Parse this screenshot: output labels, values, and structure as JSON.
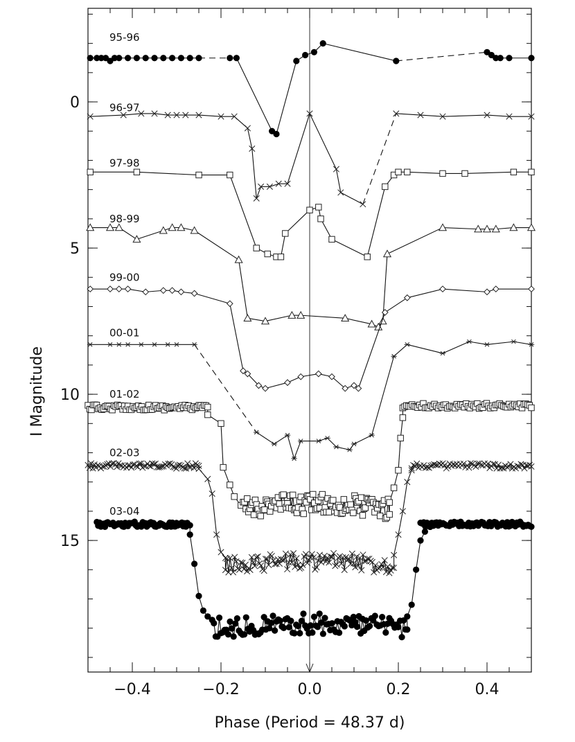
{
  "chart_data": {
    "type": "scatter",
    "title": "",
    "xlabel": "Phase (Period = 48.37 d)",
    "ylabel": "I Magnitude",
    "xlim": [
      -0.5,
      0.5
    ],
    "ylim": [
      19.5,
      -3.2
    ],
    "y_inverted": true,
    "grid": false,
    "legend": "none",
    "xticks": [
      -0.4,
      -0.2,
      0.0,
      0.2,
      0.4
    ],
    "xtick_labels": [
      "−0.4",
      "−0.2",
      "0.0",
      "0.2",
      "0.4"
    ],
    "yticks": [
      0,
      5,
      10,
      15
    ],
    "ytick_labels": [
      "0",
      "5",
      "10",
      "15"
    ],
    "zero_phase_line": 0.0,
    "series": [
      {
        "label": "95-96",
        "marker": "filled-circle",
        "label_y": -2.2,
        "points": [
          [
            -0.495,
            -1.5
          ],
          [
            -0.48,
            -1.5
          ],
          [
            -0.47,
            -1.5
          ],
          [
            -0.46,
            -1.5
          ],
          [
            -0.45,
            -1.4
          ],
          [
            -0.44,
            -1.5
          ],
          [
            -0.43,
            -1.5
          ],
          [
            -0.41,
            -1.5
          ],
          [
            -0.39,
            -1.5
          ],
          [
            -0.37,
            -1.5
          ],
          [
            -0.35,
            -1.5
          ],
          [
            -0.33,
            -1.5
          ],
          [
            -0.31,
            -1.5
          ],
          [
            -0.29,
            -1.5
          ],
          [
            -0.27,
            -1.5
          ],
          [
            -0.25,
            -1.5
          ],
          [
            -0.18,
            -1.5
          ],
          [
            -0.165,
            -1.5
          ],
          [
            -0.085,
            1.0
          ],
          [
            -0.075,
            1.1
          ],
          [
            -0.03,
            -1.4
          ],
          [
            -0.01,
            -1.6
          ],
          [
            0.01,
            -1.7
          ],
          [
            0.03,
            -2.0
          ],
          [
            0.195,
            -1.4
          ],
          [
            0.4,
            -1.7
          ],
          [
            0.41,
            -1.6
          ],
          [
            0.42,
            -1.5
          ],
          [
            0.43,
            -1.5
          ],
          [
            0.45,
            -1.5
          ],
          [
            0.5,
            -1.5
          ]
        ],
        "dashed_gaps": [
          [
            15,
            16
          ],
          [
            16,
            18
          ],
          [
            24,
            25
          ]
        ]
      },
      {
        "label": "96-97",
        "marker": "x-cross",
        "label_y": 0.2,
        "points": [
          [
            -0.495,
            0.5
          ],
          [
            -0.42,
            0.45
          ],
          [
            -0.38,
            0.4
          ],
          [
            -0.35,
            0.4
          ],
          [
            -0.32,
            0.45
          ],
          [
            -0.3,
            0.45
          ],
          [
            -0.28,
            0.45
          ],
          [
            -0.25,
            0.45
          ],
          [
            -0.2,
            0.5
          ],
          [
            -0.17,
            0.5
          ],
          [
            -0.14,
            0.9
          ],
          [
            -0.13,
            1.6
          ],
          [
            -0.12,
            3.3
          ],
          [
            -0.11,
            2.9
          ],
          [
            -0.09,
            2.9
          ],
          [
            -0.07,
            2.8
          ],
          [
            -0.05,
            2.8
          ],
          [
            0.0,
            0.4
          ],
          [
            0.06,
            2.3
          ],
          [
            0.07,
            3.1
          ],
          [
            0.12,
            3.5
          ],
          [
            0.195,
            0.4
          ],
          [
            0.25,
            0.45
          ],
          [
            0.3,
            0.5
          ],
          [
            0.4,
            0.45
          ],
          [
            0.45,
            0.5
          ],
          [
            0.5,
            0.5
          ]
        ],
        "dashed_gaps": [
          [
            20,
            21
          ]
        ]
      },
      {
        "label": "97-98",
        "marker": "open-square",
        "label_y": 2.1,
        "points": [
          [
            -0.495,
            2.4
          ],
          [
            -0.39,
            2.4
          ],
          [
            -0.25,
            2.5
          ],
          [
            -0.18,
            2.5
          ],
          [
            -0.12,
            5.0
          ],
          [
            -0.095,
            5.2
          ],
          [
            -0.075,
            5.3
          ],
          [
            -0.065,
            5.3
          ],
          [
            -0.055,
            4.5
          ],
          [
            0.0,
            3.7
          ],
          [
            0.02,
            3.6
          ],
          [
            0.025,
            4.0
          ],
          [
            0.05,
            4.7
          ],
          [
            0.13,
            5.3
          ],
          [
            0.17,
            2.9
          ],
          [
            0.19,
            2.5
          ],
          [
            0.2,
            2.4
          ],
          [
            0.22,
            2.4
          ],
          [
            0.3,
            2.45
          ],
          [
            0.35,
            2.45
          ],
          [
            0.46,
            2.4
          ],
          [
            0.5,
            2.4
          ]
        ]
      },
      {
        "label": "98-99",
        "marker": "open-triangle",
        "label_y": 4.0,
        "points": [
          [
            -0.495,
            4.3
          ],
          [
            -0.45,
            4.3
          ],
          [
            -0.43,
            4.3
          ],
          [
            -0.39,
            4.7
          ],
          [
            -0.33,
            4.4
          ],
          [
            -0.31,
            4.3
          ],
          [
            -0.29,
            4.3
          ],
          [
            -0.26,
            4.4
          ],
          [
            -0.16,
            5.4
          ],
          [
            -0.14,
            7.4
          ],
          [
            -0.1,
            7.5
          ],
          [
            -0.04,
            7.3
          ],
          [
            -0.02,
            7.3
          ],
          [
            0.08,
            7.4
          ],
          [
            0.14,
            7.6
          ],
          [
            0.155,
            7.7
          ],
          [
            0.165,
            7.5
          ],
          [
            0.175,
            5.2
          ],
          [
            0.3,
            4.3
          ],
          [
            0.38,
            4.35
          ],
          [
            0.4,
            4.35
          ],
          [
            0.42,
            4.35
          ],
          [
            0.46,
            4.3
          ],
          [
            0.5,
            4.3
          ]
        ]
      },
      {
        "label": "99-00",
        "marker": "open-diamond",
        "label_y": 6.0,
        "points": [
          [
            -0.495,
            6.4
          ],
          [
            -0.45,
            6.4
          ],
          [
            -0.43,
            6.4
          ],
          [
            -0.41,
            6.4
          ],
          [
            -0.37,
            6.5
          ],
          [
            -0.33,
            6.45
          ],
          [
            -0.31,
            6.45
          ],
          [
            -0.29,
            6.5
          ],
          [
            -0.26,
            6.55
          ],
          [
            -0.18,
            6.9
          ],
          [
            -0.15,
            9.2
          ],
          [
            -0.14,
            9.3
          ],
          [
            -0.115,
            9.7
          ],
          [
            -0.1,
            9.8
          ],
          [
            -0.05,
            9.6
          ],
          [
            -0.02,
            9.4
          ],
          [
            0.02,
            9.3
          ],
          [
            0.05,
            9.4
          ],
          [
            0.08,
            9.8
          ],
          [
            0.1,
            9.7
          ],
          [
            0.11,
            9.8
          ],
          [
            0.17,
            7.2
          ],
          [
            0.22,
            6.7
          ],
          [
            0.3,
            6.4
          ],
          [
            0.4,
            6.5
          ],
          [
            0.42,
            6.4
          ],
          [
            0.5,
            6.4
          ]
        ]
      },
      {
        "label": "00-01",
        "marker": "asterisk",
        "label_y": 7.9,
        "points": [
          [
            -0.495,
            8.3
          ],
          [
            -0.45,
            8.3
          ],
          [
            -0.43,
            8.3
          ],
          [
            -0.41,
            8.3
          ],
          [
            -0.38,
            8.3
          ],
          [
            -0.35,
            8.3
          ],
          [
            -0.32,
            8.3
          ],
          [
            -0.3,
            8.3
          ],
          [
            -0.26,
            8.3
          ],
          [
            -0.12,
            11.3
          ],
          [
            -0.08,
            11.7
          ],
          [
            -0.05,
            11.4
          ],
          [
            -0.035,
            12.2
          ],
          [
            -0.02,
            11.6
          ],
          [
            0.02,
            11.6
          ],
          [
            0.04,
            11.5
          ],
          [
            0.06,
            11.8
          ],
          [
            0.09,
            11.9
          ],
          [
            0.1,
            11.7
          ],
          [
            0.14,
            11.4
          ],
          [
            0.19,
            8.7
          ],
          [
            0.22,
            8.3
          ],
          [
            0.3,
            8.6
          ],
          [
            0.36,
            8.2
          ],
          [
            0.4,
            8.3
          ],
          [
            0.46,
            8.2
          ],
          [
            0.5,
            8.3
          ]
        ],
        "dashed_gaps": [
          [
            8,
            9
          ]
        ]
      },
      {
        "label": "01-02",
        "marker": "open-square",
        "label_y": 10.0,
        "band_left": {
          "y": 10.45,
          "from": -0.5,
          "to": -0.23
        },
        "band_right": {
          "y": 10.4,
          "from": 0.21,
          "to": 0.5
        },
        "ingress": [
          [
            -0.23,
            10.7
          ],
          [
            -0.2,
            11.0
          ],
          [
            -0.195,
            12.5
          ],
          [
            -0.18,
            13.1
          ],
          [
            -0.17,
            13.5
          ],
          [
            -0.155,
            13.8
          ]
        ],
        "floor": {
          "y": 13.9,
          "from": -0.15,
          "to": 0.18,
          "scatter": 0.35
        },
        "egress": [
          [
            0.18,
            13.7
          ],
          [
            0.19,
            13.2
          ],
          [
            0.2,
            12.6
          ],
          [
            0.205,
            11.5
          ],
          [
            0.21,
            10.8
          ]
        ]
      },
      {
        "label": "02-03",
        "marker": "x-cross",
        "label_y": 12.0,
        "band_left": {
          "y": 12.45,
          "from": -0.5,
          "to": -0.25
        },
        "band_right": {
          "y": 12.45,
          "from": 0.23,
          "to": 0.5
        },
        "ingress": [
          [
            -0.25,
            12.55
          ],
          [
            -0.23,
            12.9
          ],
          [
            -0.22,
            13.4
          ],
          [
            -0.21,
            14.8
          ],
          [
            -0.2,
            15.4
          ],
          [
            -0.19,
            15.6
          ]
        ],
        "floor": {
          "y": 15.85,
          "from": -0.19,
          "to": 0.19,
          "scatter": 0.3
        },
        "egress": [
          [
            0.19,
            15.5
          ],
          [
            0.2,
            14.8
          ],
          [
            0.21,
            14.0
          ],
          [
            0.22,
            13.0
          ],
          [
            0.23,
            12.6
          ]
        ]
      },
      {
        "label": "03-04",
        "marker": "filled-circle",
        "label_y": 14.0,
        "band_left": {
          "y": 14.45,
          "from": -0.48,
          "to": -0.27
        },
        "band_right": {
          "y": 14.45,
          "from": 0.25,
          "to": 0.5
        },
        "ingress": [
          [
            -0.27,
            14.8
          ],
          [
            -0.26,
            15.8
          ],
          [
            -0.25,
            16.9
          ],
          [
            -0.24,
            17.4
          ],
          [
            -0.23,
            17.6
          ]
        ],
        "floor": {
          "y": 18.0,
          "from": -0.22,
          "to": 0.22,
          "scatter": 0.35
        },
        "egress": [
          [
            0.22,
            17.6
          ],
          [
            0.23,
            17.2
          ],
          [
            0.24,
            16.0
          ],
          [
            0.25,
            15.0
          ],
          [
            0.26,
            14.7
          ]
        ]
      }
    ]
  }
}
